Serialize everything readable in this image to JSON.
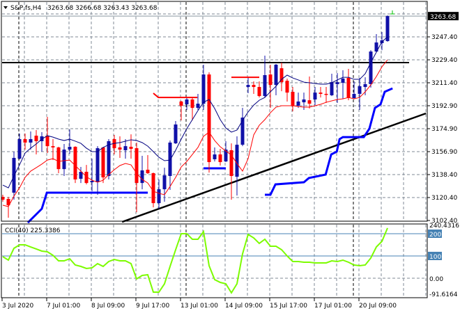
{
  "header": {
    "symbol": "S&P,fs,H4",
    "ohlc": "3263.68 3266.68 3263.43 3263.68"
  },
  "colors": {
    "bull": "#1010a8",
    "bear": "#ff0000",
    "ma_fast": "#000080",
    "ma_slow": "#ff0000",
    "trail": "#0000ff",
    "cci": "#7cfc00",
    "cci_level": "#4682b4",
    "grid": "#7f8a96",
    "resistance": "#000000",
    "trendline": "#000000"
  },
  "chart_data": [
    {
      "type": "candlestick",
      "title": "S&P,fs,H4",
      "grid": true,
      "yaxis": {
        "range": [
          3102.4,
          3265.9
        ],
        "tick_labels": [
          "3247.40",
          "3229.40",
          "3211.40",
          "3192.90",
          "3174.90",
          "3156.90",
          "3138.40",
          "3120.40",
          "3102.40"
        ],
        "current_price_label": "3263.68"
      },
      "xaxis": {
        "tick_labels": [
          {
            "label": "3 Jul 2020",
            "bar": 0
          },
          {
            "label": "7 Jul 01:00",
            "bar": 8
          },
          {
            "label": "8 Jul 09:00",
            "bar": 16
          },
          {
            "label": "9 Jul 17:00",
            "bar": 24
          },
          {
            "label": "13 Jul 01:00",
            "bar": 32
          },
          {
            "label": "14 Jul 09:00",
            "bar": 40
          },
          {
            "label": "15 Jul 17:00",
            "bar": 48
          },
          {
            "label": "17 Jul 01:00",
            "bar": 56
          },
          {
            "label": "20 Jul 09:00",
            "bar": 64
          }
        ],
        "week_separators": [
          2,
          32,
          62
        ]
      },
      "ohlc": [
        [
          3121.9,
          3123.6,
          3118.1,
          3119.7
        ],
        [
          3120.3,
          3121.9,
          3105.6,
          3115.4
        ],
        [
          3125.2,
          3157.4,
          3119.7,
          3152.5
        ],
        [
          3151.9,
          3171.6,
          3151.4,
          3167.2
        ],
        [
          3167.2,
          3171.6,
          3159.0,
          3164.5
        ],
        [
          3164.5,
          3173.2,
          3159.0,
          3167.2
        ],
        [
          3169.9,
          3174.3,
          3155.2,
          3165.6
        ],
        [
          3165.6,
          3172.7,
          3157.4,
          3169.4
        ],
        [
          3169.9,
          3184.7,
          3156.3,
          3161.7
        ],
        [
          3161.7,
          3167.2,
          3150.8,
          3160.7
        ],
        [
          3160.7,
          3161.2,
          3140.5,
          3143.7
        ],
        [
          3143.7,
          3163.4,
          3138.3,
          3159.0
        ],
        [
          3159.0,
          3174.8,
          3155.7,
          3161.2
        ],
        [
          3161.2,
          3161.6,
          3132.8,
          3135.6
        ],
        [
          3136.1,
          3145.4,
          3132.8,
          3141.6
        ],
        [
          3141.6,
          3147.0,
          3131.7,
          3132.8
        ],
        [
          3133.4,
          3151.9,
          3126.3,
          3134.5
        ],
        [
          3133.4,
          3161.7,
          3123.6,
          3160.1
        ],
        [
          3160.7,
          3161.1,
          3132.8,
          3137.2
        ],
        [
          3138.3,
          3167.2,
          3135.6,
          3165.6
        ],
        [
          3167.2,
          3170.5,
          3155.2,
          3160.1
        ],
        [
          3160.7,
          3169.4,
          3152.5,
          3159.0
        ],
        [
          3158.5,
          3167.2,
          3151.9,
          3161.7
        ],
        [
          3161.2,
          3171.0,
          3151.9,
          3159.6
        ],
        [
          3160.1,
          3164.5,
          3109.9,
          3132.8
        ],
        [
          3132.8,
          3154.1,
          3127.9,
          3142.7
        ],
        [
          3143.2,
          3154.7,
          3139.9,
          3140.5
        ],
        [
          3140.5,
          3141.0,
          3113.7,
          3117.0
        ],
        [
          3117.0,
          3135.6,
          3112.6,
          3127.9
        ],
        [
          3127.9,
          3144.8,
          3118.1,
          3138.8
        ],
        [
          3138.3,
          3166.1,
          3127.4,
          3164.5
        ],
        [
          3163.9,
          3181.4,
          3163.4,
          3178.7
        ],
        [
          3196.7,
          3197.2,
          3181.9,
          3193.4
        ],
        [
          3194.5,
          3199.4,
          3190.1,
          3198.3
        ],
        [
          3198.3,
          3199.4,
          3181.9,
          3191.7
        ],
        [
          3191.7,
          3202.7,
          3190.1,
          3195.0
        ],
        [
          3195.0,
          3225.6,
          3190.1,
          3217.9
        ],
        [
          3217.9,
          3219.6,
          3141.0,
          3149.2
        ],
        [
          3151.4,
          3160.7,
          3149.7,
          3155.2
        ],
        [
          3155.2,
          3159.6,
          3146.5,
          3149.2
        ],
        [
          3149.7,
          3165.6,
          3149.2,
          3159.0
        ],
        [
          3158.5,
          3163.9,
          3119.7,
          3138.3
        ],
        [
          3137.7,
          3169.4,
          3123.0,
          3162.8
        ],
        [
          3162.8,
          3191.7,
          3161.7,
          3184.1
        ],
        [
          3208.1,
          3215.2,
          3203.2,
          3209.7
        ],
        [
          3209.7,
          3212.5,
          3202.7,
          3208.1
        ],
        [
          3208.1,
          3212.5,
          3199.9,
          3201.0
        ],
        [
          3201.0,
          3232.7,
          3199.9,
          3217.4
        ],
        [
          3217.9,
          3225.6,
          3191.7,
          3209.7
        ],
        [
          3209.7,
          3226.1,
          3201.6,
          3225.6
        ],
        [
          3222.8,
          3227.2,
          3204.8,
          3211.9
        ],
        [
          3213.0,
          3214.7,
          3196.7,
          3203.7
        ],
        [
          3204.3,
          3208.1,
          3189.0,
          3193.4
        ],
        [
          3193.4,
          3203.7,
          3191.7,
          3196.7
        ],
        [
          3196.1,
          3203.7,
          3190.1,
          3198.3
        ],
        [
          3197.7,
          3216.3,
          3191.2,
          3195.0
        ],
        [
          3198.3,
          3208.1,
          3193.9,
          3203.7
        ],
        [
          3203.7,
          3208.1,
          3199.9,
          3202.7
        ],
        [
          3202.7,
          3208.1,
          3195.6,
          3202.1
        ],
        [
          3201.6,
          3218.5,
          3201.0,
          3211.9
        ],
        [
          3210.3,
          3219.0,
          3195.6,
          3211.9
        ],
        [
          3211.4,
          3221.2,
          3198.8,
          3214.7
        ],
        [
          3215.2,
          3222.3,
          3197.7,
          3199.4
        ],
        [
          3199.4,
          3212.5,
          3198.8,
          3202.7
        ],
        [
          3202.7,
          3215.2,
          3190.1,
          3208.7
        ],
        [
          3208.1,
          3215.7,
          3201.6,
          3210.3
        ],
        [
          3210.3,
          3237.0,
          3207.6,
          3235.9
        ],
        [
          3235.9,
          3249.6,
          3235.4,
          3243.0
        ],
        [
          3242.5,
          3251.2,
          3237.0,
          3244.7
        ],
        [
          3244.1,
          3264.2,
          3243.6,
          3263.68
        ]
      ],
      "ma_fast": [
        3131.2,
        3129.0,
        3138.3,
        3147.0,
        3156.3,
        3160.1,
        3163.4,
        3167.2,
        3169.9,
        3168.8,
        3167.2,
        3166.1,
        3167.2,
        3165.6,
        3163.9,
        3160.1,
        3157.4,
        3157.4,
        3160.7,
        3162.8,
        3163.9,
        3164.5,
        3165.6,
        3166.7,
        3166.1,
        3164.5,
        3161.7,
        3157.4,
        3153.0,
        3150.3,
        3150.8,
        3158.5,
        3167.2,
        3175.4,
        3182.5,
        3189.6,
        3196.1,
        3198.3,
        3191.2,
        3182.5,
        3175.9,
        3172.7,
        3174.3,
        3181.9,
        3188.5,
        3193.9,
        3197.7,
        3199.9,
        3204.3,
        3208.7,
        3214.1,
        3217.4,
        3215.2,
        3213.6,
        3211.9,
        3211.4,
        3210.8,
        3210.3,
        3210.3,
        3211.4,
        3213.6,
        3215.7,
        3215.7,
        3214.1,
        3214.1,
        3218.5,
        3227.2,
        3235.4,
        3243.6,
        3247.4
      ],
      "ma_slow": [
        3115.4,
        3114.3,
        3122.5,
        3129.0,
        3137.2,
        3142.1,
        3144.8,
        3147.6,
        3150.8,
        3151.9,
        3149.7,
        3150.3,
        3150.8,
        3146.5,
        3142.1,
        3137.7,
        3135.0,
        3133.4,
        3135.0,
        3139.4,
        3143.2,
        3146.5,
        3148.1,
        3147.0,
        3140.5,
        3135.6,
        3132.8,
        3126.3,
        3124.7,
        3123.6,
        3130.1,
        3137.2,
        3145.4,
        3149.7,
        3155.2,
        3160.7,
        3169.4,
        3172.7,
        3166.1,
        3161.2,
        3157.9,
        3154.7,
        3148.1,
        3142.1,
        3151.9,
        3170.5,
        3178.1,
        3182.5,
        3187.9,
        3192.3,
        3193.4,
        3193.4,
        3193.4,
        3192.8,
        3192.3,
        3192.3,
        3193.4,
        3194.5,
        3196.1,
        3197.2,
        3198.3,
        3198.8,
        3199.9,
        3198.8,
        3199.9,
        3204.3,
        3209.7,
        3216.3,
        3223.9,
        3229.4
      ],
      "trailing_stop_segments": [
        [
          [
            4.5,
            3101.7
          ],
          [
            7,
            3112.6
          ],
          [
            7.9,
            3125.2
          ],
          [
            26,
            3125.2
          ]
        ],
        [
          [
            36,
            3144.3
          ],
          [
            40,
            3144.3
          ]
        ],
        [
          [
            47,
            3123.6
          ],
          [
            48,
            3123.6
          ],
          [
            48.9,
            3131.7
          ],
          [
            54,
            3133.4
          ],
          [
            54.9,
            3136.7
          ],
          [
            57.9,
            3139.4
          ],
          [
            58.9,
            3155.2
          ],
          [
            59.9,
            3157.4
          ],
          [
            60.4,
            3167.2
          ],
          [
            61,
            3168.8
          ],
          [
            64.75,
            3168.8
          ],
          [
            65.75,
            3175.4
          ],
          [
            66.75,
            3191.7
          ],
          [
            67.75,
            3194.5
          ],
          [
            68.5,
            3204.3
          ],
          [
            69.9,
            3207.0
          ]
        ]
      ],
      "red_level_segments": [
        [
          [
            27,
            3203.2
          ],
          [
            27.9,
            3199.9
          ],
          [
            34.9,
            3199.9
          ]
        ],
        [
          [
            41,
            3215.7
          ],
          [
            46,
            3215.7
          ]
        ]
      ],
      "resistance_level": 3227.2,
      "trendline": [
        [
          21.4,
          3102.3
        ],
        [
          75.9,
          3187.4
        ]
      ]
    },
    {
      "type": "line",
      "title": "CCI(40) 225.3386",
      "yaxis": {
        "range": [
          -91.6164,
          240.4316
        ],
        "tick_labels": [
          "240.4316",
          "200",
          "100",
          "0.00",
          "-91.6164"
        ],
        "levels": [
          200,
          100
        ]
      },
      "values": [
        96.9,
        81.3,
        134.4,
        150,
        150,
        140.6,
        131.3,
        121.9,
        118.8,
        103.1,
        78.1,
        78.1,
        87.5,
        59.4,
        53.1,
        43.8,
        46.9,
        65.6,
        53.1,
        75,
        84.4,
        78.1,
        78.1,
        65.6,
        -3.1,
        12.5,
        15.6,
        -62.5,
        -62.5,
        -25,
        53.1,
        128.1,
        200,
        200,
        175,
        175,
        209.4,
        56.3,
        -6.3,
        -18.8,
        -25,
        -65.6,
        -25,
        109.4,
        196.9,
        181.3,
        156.3,
        175,
        143.8,
        143.8,
        128.1,
        100,
        75,
        75,
        71.9,
        71.9,
        68.8,
        68.8,
        68.8,
        78.1,
        75,
        81.3,
        71.9,
        59.4,
        56.3,
        59.4,
        90.6,
        140.6,
        165.6,
        225.3
      ]
    }
  ]
}
